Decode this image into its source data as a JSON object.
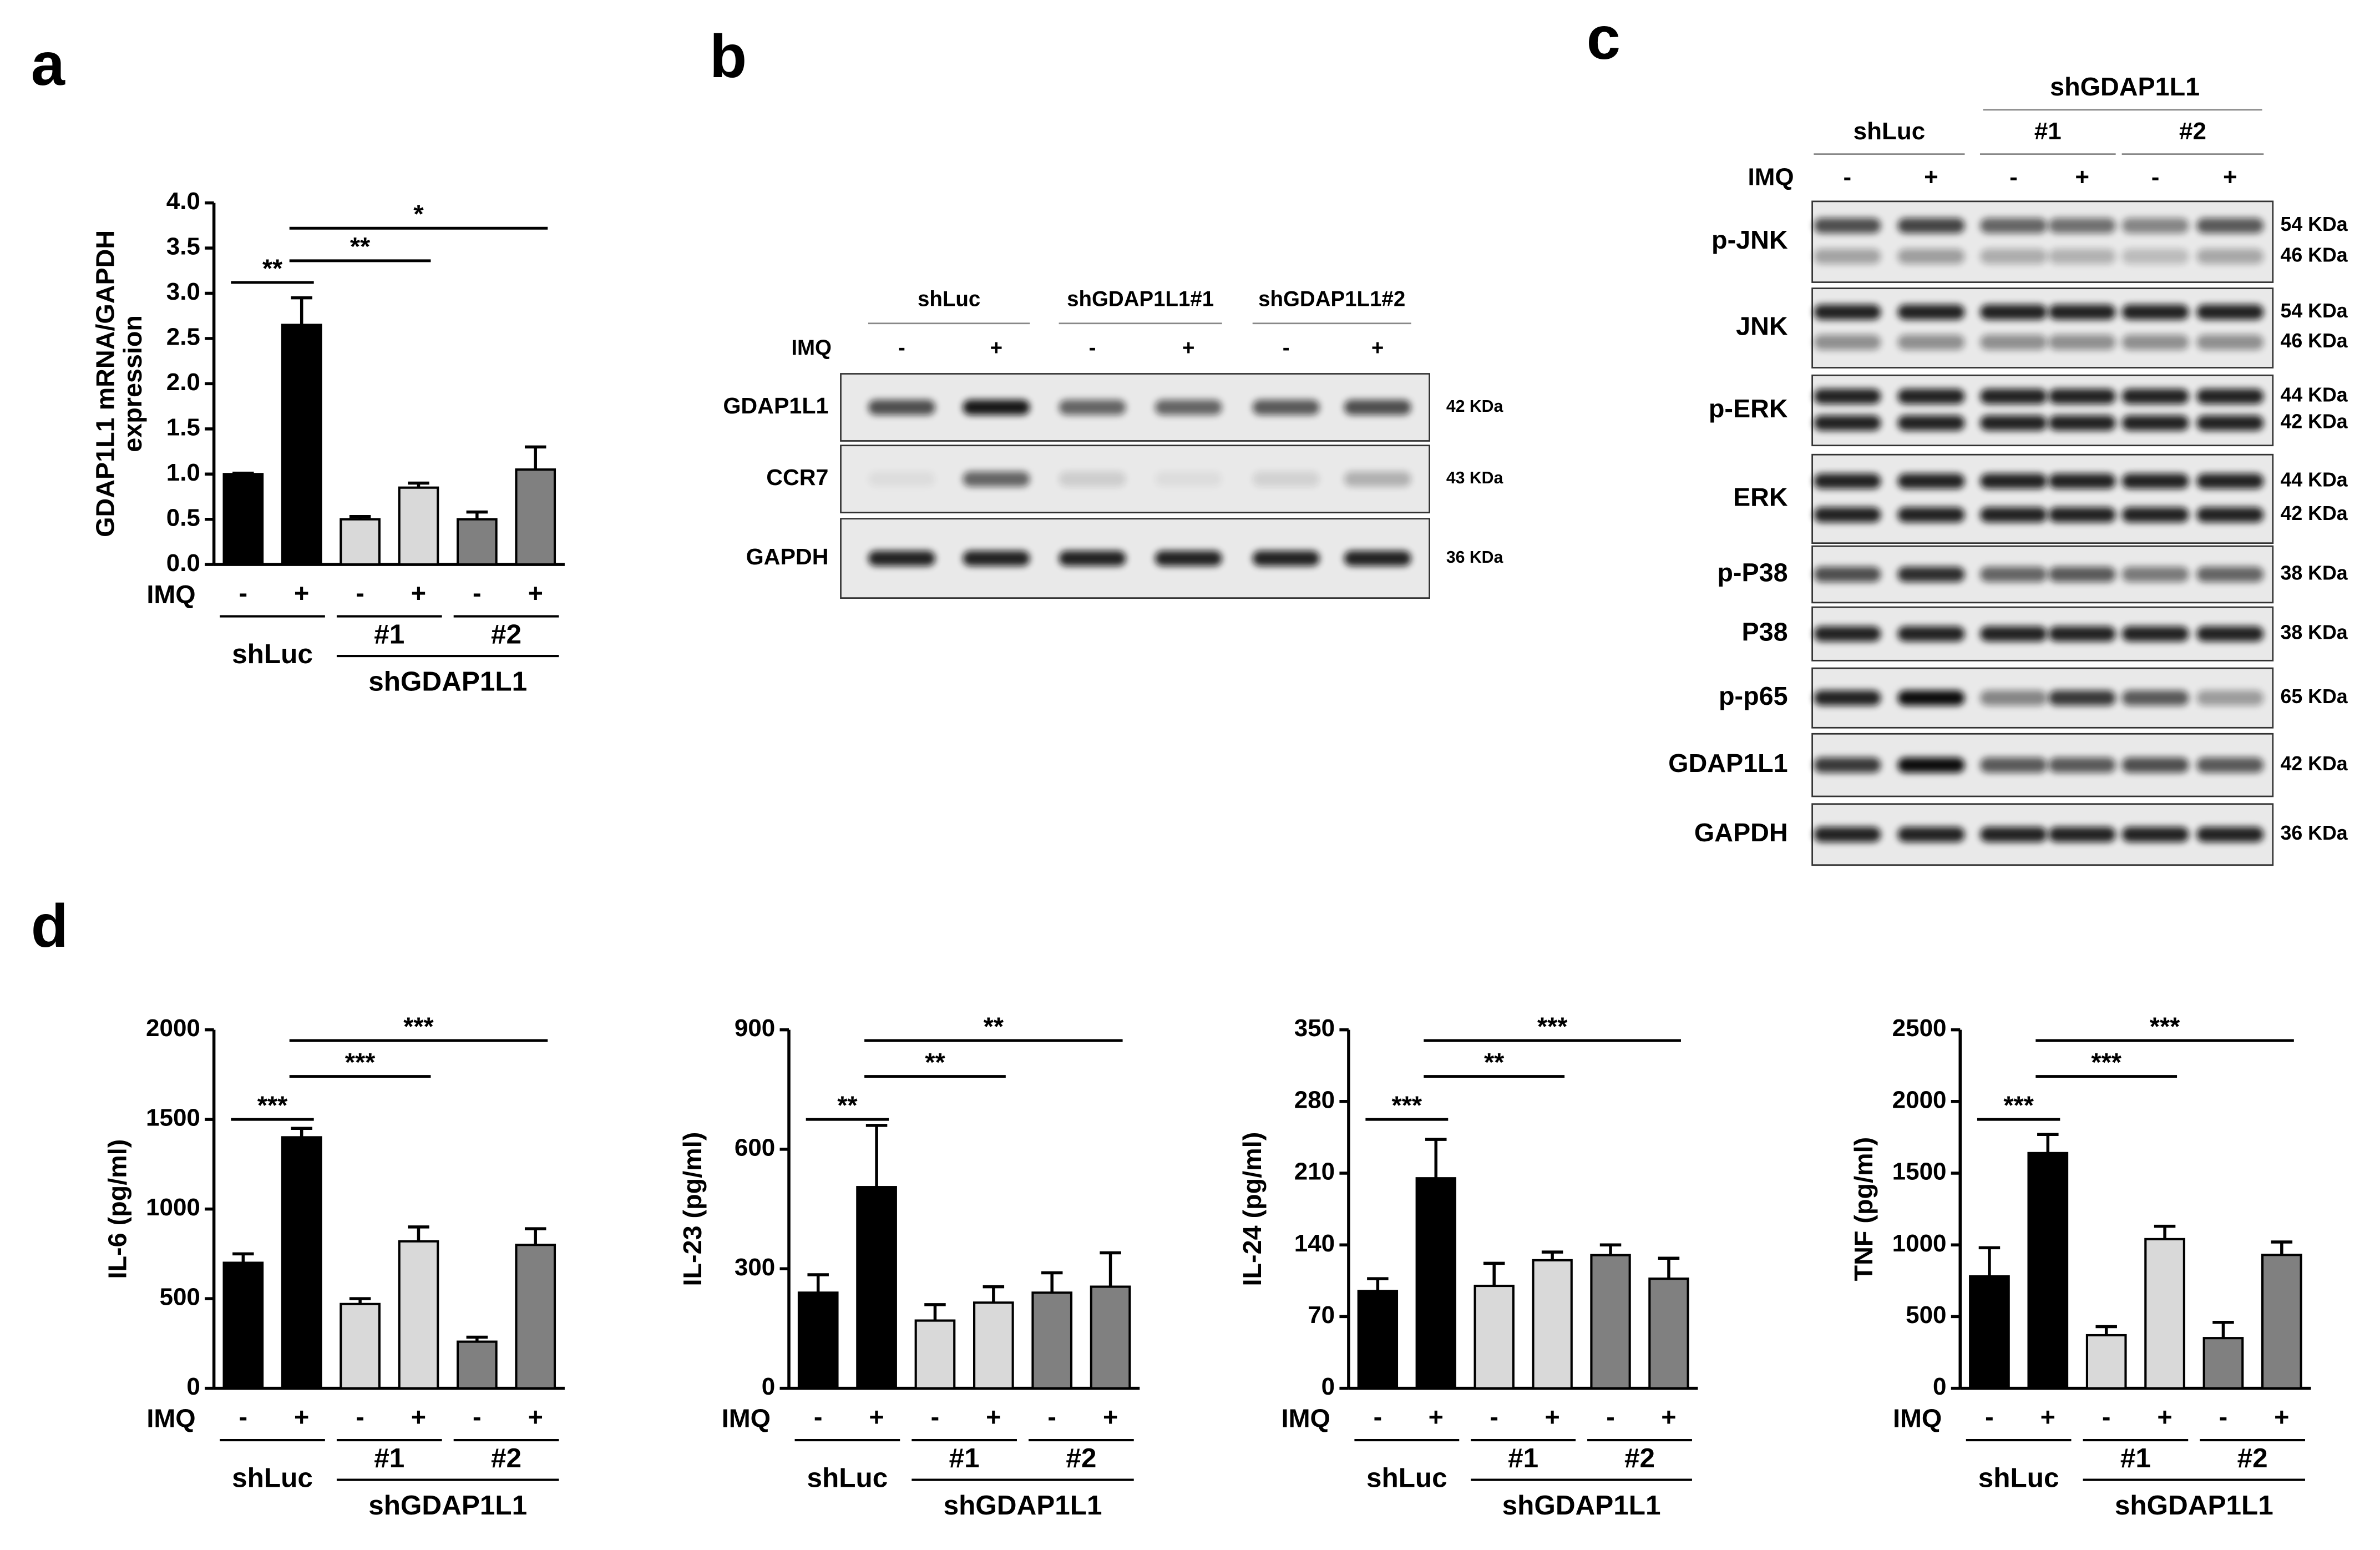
{
  "panel_labels": [
    "a",
    "b",
    "c",
    "d"
  ],
  "chart_data": [
    {
      "type": "bar",
      "ylabel": [
        "GDAP1L1 mRNA/GAPDH",
        "expression"
      ],
      "row_label": "IMQ",
      "categories": [
        "-",
        "+",
        "-",
        "+",
        "-",
        "+"
      ],
      "groups": [
        "shLuc",
        "#1",
        "#2"
      ],
      "supergroup": "shGDAP1L1",
      "values": [
        1.0,
        2.65,
        0.5,
        0.85,
        0.5,
        1.05
      ],
      "errors": [
        0.01,
        0.3,
        0.03,
        0.05,
        0.08,
        0.25
      ],
      "colors": [
        "#000000",
        "#000000",
        "#d9d9d9",
        "#d9d9d9",
        "#808080",
        "#808080"
      ],
      "ylim": [
        0,
        4
      ],
      "yticks": [
        {
          "value": 0,
          "label": "0.0"
        },
        0.5,
        {
          "value": 1,
          "label": "1.0"
        },
        1.5,
        {
          "value": 2,
          "label": "2.0"
        },
        2.5,
        {
          "value": 3,
          "label": "3.0"
        },
        3.5,
        {
          "value": 4,
          "label": "4.0"
        }
      ],
      "annotations": [
        "**",
        "**",
        "*"
      ]
    },
    {
      "type": "bar",
      "ylabel": [
        "IL-6 (pg/ml)"
      ],
      "row_label": "IMQ",
      "categories": [
        "-",
        "+",
        "-",
        "+",
        "-",
        "+"
      ],
      "groups": [
        "shLuc",
        "#1",
        "#2"
      ],
      "supergroup": "shGDAP1L1",
      "values": [
        700,
        1400,
        470,
        820,
        260,
        800
      ],
      "errors": [
        50,
        50,
        30,
        80,
        25,
        90
      ],
      "colors": [
        "#000000",
        "#000000",
        "#d9d9d9",
        "#d9d9d9",
        "#808080",
        "#808080"
      ],
      "ylim": [
        0,
        2000
      ],
      "yticks": [
        0,
        500,
        1000,
        1500,
        2000
      ],
      "annotations": [
        "***",
        "***",
        "***"
      ]
    },
    {
      "type": "bar",
      "ylabel": [
        "IL-23 (pg/ml)"
      ],
      "row_label": "IMQ",
      "categories": [
        "-",
        "+",
        "-",
        "+",
        "-",
        "+"
      ],
      "groups": [
        "shLuc",
        "#1",
        "#2"
      ],
      "supergroup": "shGDAP1L1",
      "values": [
        240,
        505,
        170,
        215,
        240,
        255
      ],
      "errors": [
        45,
        155,
        40,
        40,
        50,
        85
      ],
      "colors": [
        "#000000",
        "#000000",
        "#d9d9d9",
        "#d9d9d9",
        "#808080",
        "#808080"
      ],
      "ylim": [
        0,
        900
      ],
      "yticks": [
        0,
        300,
        600,
        900
      ],
      "annotations": [
        "**",
        "**",
        "**"
      ]
    },
    {
      "type": "bar",
      "ylabel": [
        "IL-24 (pg/ml)"
      ],
      "row_label": "IMQ",
      "categories": [
        "-",
        "+",
        "-",
        "+",
        "-",
        "+"
      ],
      "groups": [
        "shLuc",
        "#1",
        "#2"
      ],
      "supergroup": "shGDAP1L1",
      "values": [
        95,
        205,
        100,
        125,
        130,
        107
      ],
      "errors": [
        12,
        38,
        22,
        8,
        10,
        20
      ],
      "colors": [
        "#000000",
        "#000000",
        "#d9d9d9",
        "#d9d9d9",
        "#808080",
        "#808080"
      ],
      "ylim": [
        0,
        350
      ],
      "yticks": [
        0,
        70,
        140,
        210,
        280,
        350
      ],
      "annotations": [
        "***",
        "**",
        "***"
      ]
    },
    {
      "type": "bar",
      "ylabel": [
        "TNF (pg/ml)"
      ],
      "row_label": "IMQ",
      "categories": [
        "-",
        "+",
        "-",
        "+",
        "-",
        "+"
      ],
      "groups": [
        "shLuc",
        "#1",
        "#2"
      ],
      "supergroup": "shGDAP1L1",
      "values": [
        780,
        1640,
        370,
        1040,
        350,
        930
      ],
      "errors": [
        200,
        130,
        60,
        90,
        110,
        90
      ],
      "colors": [
        "#000000",
        "#000000",
        "#d9d9d9",
        "#d9d9d9",
        "#808080",
        "#808080"
      ],
      "ylim": [
        0,
        2500
      ],
      "yticks": [
        0,
        500,
        1000,
        1500,
        2000,
        2500
      ],
      "annotations": [
        "***",
        "***",
        "***"
      ]
    }
  ],
  "blot_b": {
    "groups": [
      "shLuc",
      "shGDAP1L1#1",
      "shGDAP1L1#2"
    ],
    "row_label": "IMQ",
    "lanes": [
      "-",
      "+",
      "-",
      "+",
      "-",
      "+"
    ],
    "rows": [
      {
        "name": "GDAP1L1",
        "sizes": [
          "42 KDa"
        ]
      },
      {
        "name": "CCR7",
        "sizes": [
          "43 KDa"
        ]
      },
      {
        "name": "GAPDH",
        "sizes": [
          "36 KDa"
        ]
      }
    ]
  },
  "blot_c": {
    "supergroup": "shGDAP1L1",
    "groups": [
      "shLuc",
      "#1",
      "#2"
    ],
    "row_label": "IMQ",
    "lanes": [
      "-",
      "+",
      "-",
      "+",
      "-",
      "+"
    ],
    "rows": [
      {
        "name": "p-JNK",
        "sizes": [
          "54 KDa",
          "46 KDa"
        ]
      },
      {
        "name": "JNK",
        "sizes": [
          "54 KDa",
          "46 KDa"
        ]
      },
      {
        "name": "p-ERK",
        "sizes": [
          "44 KDa",
          "42 KDa"
        ]
      },
      {
        "name": "ERK",
        "sizes": [
          "44 KDa",
          "42 KDa"
        ]
      },
      {
        "name": "p-P38",
        "sizes": [
          "38 KDa"
        ]
      },
      {
        "name": "P38",
        "sizes": [
          "38 KDa"
        ]
      },
      {
        "name": "p-p65",
        "sizes": [
          "65 KDa"
        ]
      },
      {
        "name": "GDAP1L1",
        "sizes": [
          "42 KDa"
        ]
      },
      {
        "name": "GAPDH",
        "sizes": [
          "36 KDa"
        ]
      }
    ]
  }
}
